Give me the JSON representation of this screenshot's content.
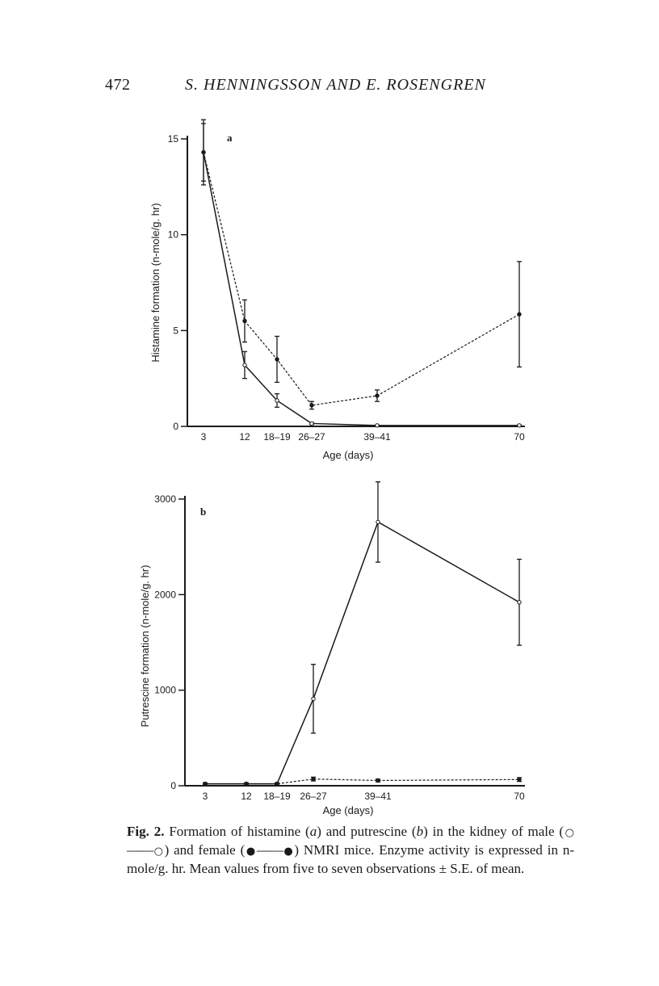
{
  "header": {
    "page_number": "472",
    "running_head": "S. HENNINGSSON AND E. ROSENGREN"
  },
  "chart_data": [
    {
      "type": "line",
      "panel_label": "a",
      "ylabel": "Histamine formation (n-mole/g. hr)",
      "xlabel": "Age (days)",
      "x": [
        3,
        12,
        18.5,
        26.5,
        40,
        70
      ],
      "x_tick_labels": [
        "3",
        "12",
        "18–19",
        "26–27",
        "39–41",
        "70"
      ],
      "ylim": [
        0,
        15
      ],
      "y_ticks": [
        0,
        5,
        10,
        15
      ],
      "y_tick_labels": [
        "0",
        "5",
        "10",
        "15"
      ],
      "series": [
        {
          "name": "male",
          "marker": "open circle",
          "line": "solid",
          "values": [
            14.3,
            3.2,
            1.35,
            0.15,
            0.05,
            0.05
          ],
          "errors": [
            1.5,
            0.7,
            0.35,
            0.05,
            0.02,
            0.02
          ]
        },
        {
          "name": "female",
          "marker": "filled circle",
          "line": "dashed",
          "values": [
            14.3,
            5.5,
            3.5,
            1.1,
            1.6,
            5.85
          ],
          "errors": [
            1.7,
            1.1,
            1.2,
            0.2,
            0.3,
            2.75
          ]
        }
      ]
    },
    {
      "type": "line",
      "panel_label": "b",
      "ylabel": "Putrescine formation (n-mole/g. hr)",
      "xlabel": "Age (days)",
      "x": [
        3,
        12,
        18.5,
        26.5,
        40,
        70
      ],
      "x_tick_labels": [
        "3",
        "12",
        "18–19",
        "26–27",
        "39–41",
        "70"
      ],
      "ylim": [
        0,
        3000
      ],
      "y_ticks": [
        0,
        1000,
        2000,
        3000
      ],
      "y_tick_labels": [
        "0",
        "1000",
        "2000",
        "3000"
      ],
      "series": [
        {
          "name": "male",
          "marker": "open circle",
          "line": "solid",
          "values": [
            20,
            20,
            20,
            910,
            2760,
            1920
          ],
          "errors": [
            10,
            10,
            10,
            360,
            420,
            450
          ]
        },
        {
          "name": "female",
          "marker": "filled circle",
          "line": "dashed",
          "values": [
            20,
            20,
            20,
            70,
            55,
            65
          ],
          "errors": [
            10,
            10,
            10,
            20,
            15,
            20
          ]
        }
      ]
    }
  ],
  "caption": {
    "fig_label": "Fig. 2.",
    "text_1": " Formation of histamine (",
    "a": "a",
    "text_2": ") and putrescine (",
    "b": "b",
    "text_3": ") in the kidney of male (",
    "open_symbol": "○",
    "dash_1": "——",
    "text_4": ") and female (",
    "filled_symbol": "●",
    "dash_2": "——",
    "text_5": ") NMRI mice. Enzyme activity is expressed in n-mole/g. hr. Mean values from five to seven observations ± S.E. of mean."
  }
}
